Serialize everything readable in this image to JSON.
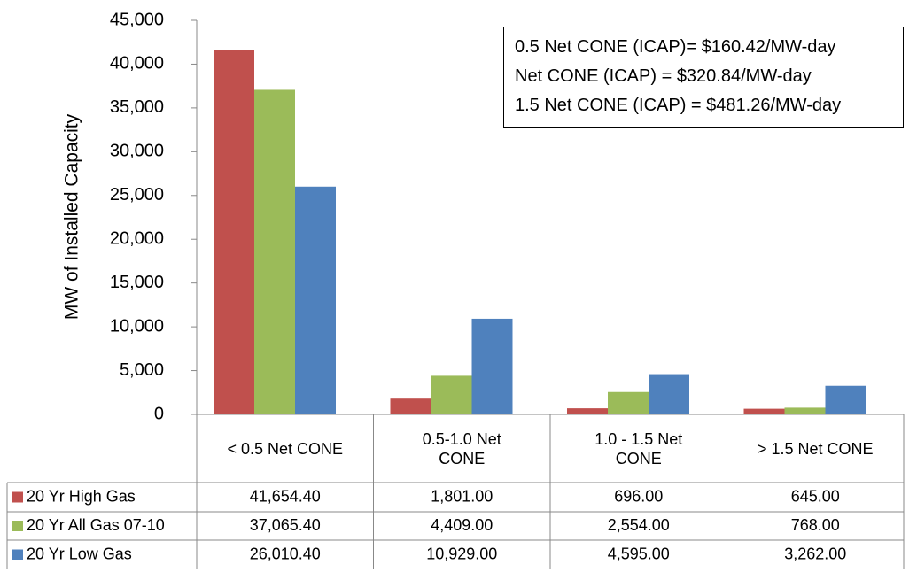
{
  "chart_data": {
    "type": "bar",
    "y_label": "MW of Installed Capacity",
    "annotations": [
      "0.5 Net CONE (ICAP)= $160.42/MW-day",
      "Net CONE (ICAP) = $320.84/MW-day",
      "1.5 Net CONE (ICAP) = $481.26/MW-day"
    ],
    "categories": [
      "< 0.5 Net CONE",
      "0.5-1.0 Net CONE",
      "1.0 - 1.5 Net CONE",
      "> 1.5 Net CONE"
    ],
    "series": [
      {
        "name": "20 Yr High Gas",
        "color": "#c0504d",
        "values": [
          41654.4,
          1801,
          696,
          645
        ],
        "value_labels": [
          "41,654.40",
          "1,801.00",
          "696.00",
          "645.00"
        ]
      },
      {
        "name": "20 Yr All Gas 07-10",
        "color": "#9bbb59",
        "values": [
          37065.4,
          4409,
          2554,
          768
        ],
        "value_labels": [
          "37,065.40",
          "4,409.00",
          "2,554.00",
          "768.00"
        ]
      },
      {
        "name": "20 Yr Low Gas",
        "color": "#4f81bd",
        "values": [
          26010.4,
          10929,
          4595,
          3262
        ],
        "value_labels": [
          "26,010.40",
          "10,929.00",
          "4,595.00",
          "3,262.00"
        ]
      }
    ],
    "ylim": [
      0,
      45000
    ],
    "yticks": [
      0,
      {
        "value": 5000,
        "label": "5,000"
      },
      {
        "value": 10000,
        "label": "10,000"
      },
      {
        "value": 15000,
        "label": "15,000"
      },
      {
        "value": 20000,
        "label": "20,000"
      },
      {
        "value": 25000,
        "label": "25,000"
      },
      {
        "value": 30000,
        "label": "30,000"
      },
      {
        "value": 35000,
        "label": "35,000"
      },
      {
        "value": 40000,
        "label": "40,000"
      },
      {
        "value": 45000,
        "label": "45,000"
      }
    ]
  }
}
